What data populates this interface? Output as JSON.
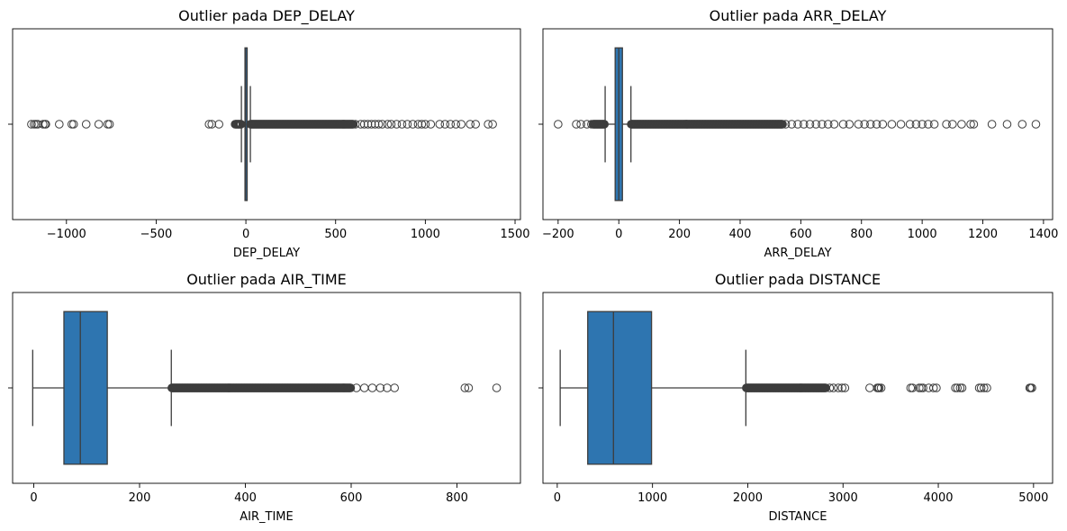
{
  "colors": {
    "box_fill": "#2e75b0",
    "line": "#3d3d3d",
    "background": "#ffffff"
  },
  "chart_data": [
    {
      "type": "box",
      "title": "Outlier pada DEP_DELAY",
      "xlabel": "DEP_DELAY",
      "ylabel": "",
      "xlim": [
        -1300,
        1530
      ],
      "ticks": [
        -1000,
        -500,
        0,
        500,
        1000,
        1500
      ],
      "tick_labels": [
        "−1000",
        "−500",
        "0",
        "500",
        "1000",
        "1500"
      ],
      "box": {
        "whisker_low": -25,
        "q1": -5,
        "median": -2,
        "q3": 7,
        "whisker_high": 25
      },
      "outliers": [
        -1195,
        -1180,
        -1170,
        -1160,
        -1130,
        -1120,
        -1115,
        -1040,
        -970,
        -960,
        -890,
        -820,
        -770,
        -760,
        -205,
        -190,
        -150
      ],
      "outlier_dense_ranges": [
        [
          -60,
          -26
        ],
        [
          26,
          600
        ]
      ],
      "outliers_right": [
        610,
        640,
        660,
        680,
        700,
        720,
        740,
        760,
        790,
        810,
        840,
        870,
        900,
        930,
        960,
        980,
        1000,
        1030,
        1080,
        1110,
        1140,
        1170,
        1200,
        1250,
        1280,
        1350,
        1375
      ],
      "grid": false,
      "legend": null
    },
    {
      "type": "box",
      "title": "Outlier pada ARR_DELAY",
      "xlabel": "ARR_DELAY",
      "ylabel": "",
      "xlim": [
        -250,
        1430
      ],
      "ticks": [
        -200,
        0,
        200,
        400,
        600,
        800,
        1000,
        1200,
        1400
      ],
      "tick_labels": [
        "−200",
        "0",
        "200",
        "400",
        "600",
        "800",
        "1000",
        "1200",
        "1400"
      ],
      "box": {
        "whisker_low": -45,
        "q1": -12,
        "median": 0,
        "q3": 12,
        "whisker_high": 40
      },
      "outliers": [
        -200,
        -140,
        -125,
        -105,
        -90
      ],
      "outlier_dense_ranges": [
        [
          -85,
          -46
        ],
        [
          41,
          540
        ]
      ],
      "outliers_right": [
        550,
        570,
        590,
        610,
        630,
        650,
        670,
        690,
        710,
        740,
        760,
        790,
        810,
        830,
        850,
        870,
        900,
        930,
        960,
        980,
        1000,
        1020,
        1040,
        1080,
        1100,
        1130,
        1160,
        1170,
        1230,
        1280,
        1330,
        1375
      ],
      "grid": false,
      "legend": null
    },
    {
      "type": "box",
      "title": "Outlier pada AIR_TIME",
      "xlabel": "AIR_TIME",
      "ylabel": "",
      "xlim": [
        -40,
        920
      ],
      "ticks": [
        0,
        200,
        400,
        600,
        800
      ],
      "tick_labels": [
        "0",
        "200",
        "400",
        "600",
        "800"
      ],
      "box": {
        "whisker_low": -2,
        "q1": 57,
        "median": 88,
        "q3": 139,
        "whisker_high": 260
      },
      "outliers": [],
      "outlier_dense_ranges": [
        [
          261,
          600
        ]
      ],
      "outliers_right": [
        610,
        625,
        640,
        655,
        668,
        682,
        815,
        822,
        875
      ],
      "grid": false,
      "legend": null
    },
    {
      "type": "box",
      "title": "Outlier pada DISTANCE",
      "xlabel": "DISTANCE",
      "ylabel": "",
      "xlim": [
        -150,
        5200
      ],
      "ticks": [
        0,
        1000,
        2000,
        3000,
        4000,
        5000
      ],
      "tick_labels": [
        "0",
        "1000",
        "2000",
        "3000",
        "4000",
        "5000"
      ],
      "box": {
        "whisker_low": 31,
        "q1": 320,
        "median": 590,
        "q3": 990,
        "whisker_high": 1980
      },
      "outliers": [],
      "outlier_dense_ranges": [
        [
          1985,
          2820
        ]
      ],
      "outliers_right": [
        2860,
        2900,
        2950,
        2990,
        3020,
        3280,
        3360,
        3370,
        3380,
        3400,
        3710,
        3730,
        3800,
        3820,
        3840,
        3900,
        3950,
        3980,
        4180,
        4200,
        4230,
        4250,
        4430,
        4450,
        4480,
        4510,
        4960,
        4970,
        4983
      ],
      "grid": false,
      "legend": null
    }
  ]
}
